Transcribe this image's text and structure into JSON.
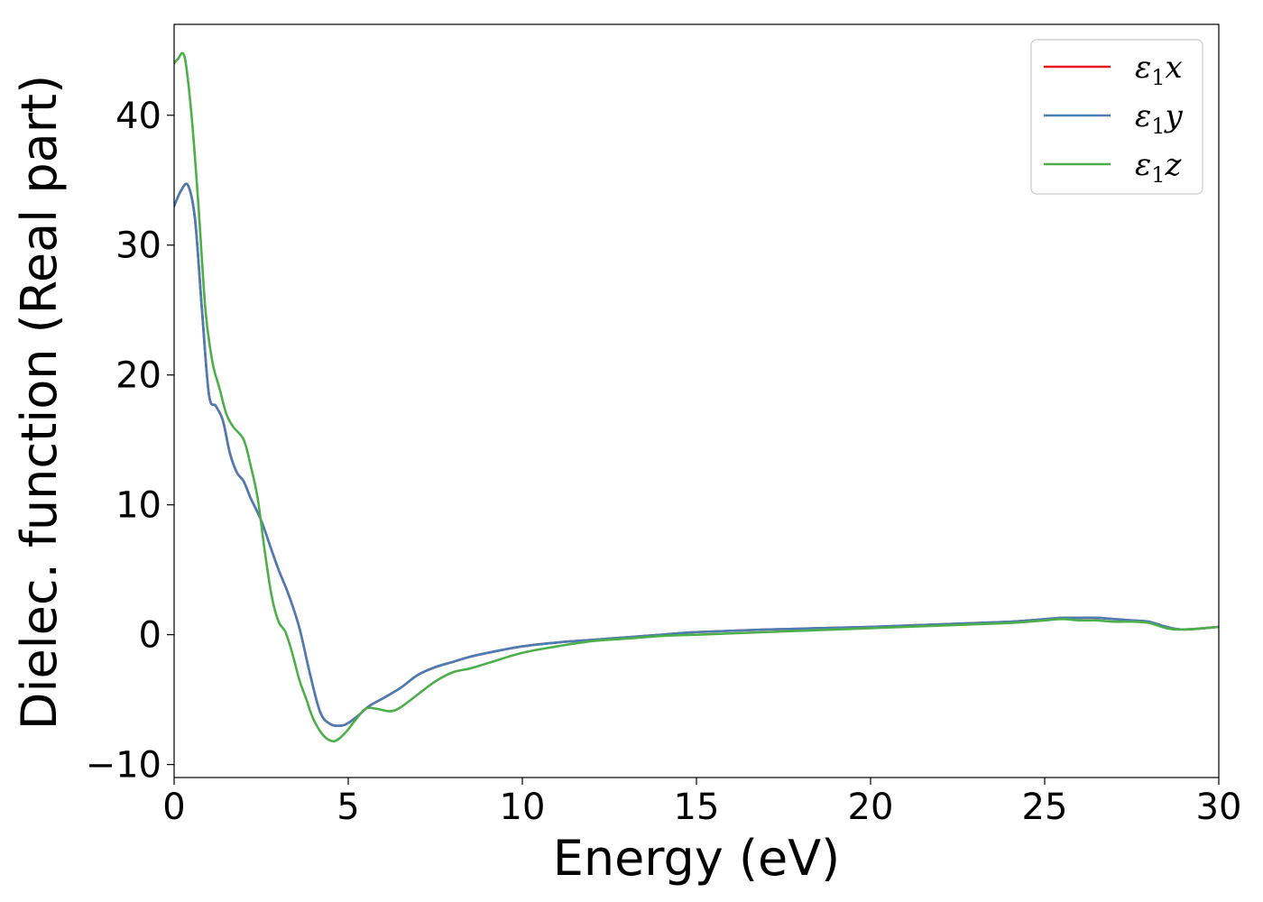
{
  "chart_data": {
    "type": "line",
    "title": "",
    "xlabel": "Energy (eV)",
    "ylabel": "Dielec. function (Real part)",
    "xlim": [
      0,
      30
    ],
    "ylim": [
      -11,
      47
    ],
    "xticks": [
      0,
      5,
      10,
      15,
      20,
      25,
      30
    ],
    "xtick_labels": [
      "0",
      "5",
      "10",
      "15",
      "20",
      "25",
      "30"
    ],
    "yticks": [
      -10,
      0,
      10,
      20,
      30,
      40
    ],
    "ytick_labels": [
      "−10",
      "0",
      "10",
      "20",
      "30",
      "40"
    ],
    "grid": false,
    "legend": "top-right",
    "series": [
      {
        "name": "ε₁x",
        "legend_main": "ε",
        "legend_sub": "1",
        "legend_var": "x",
        "color": "#e41a1c",
        "x": [
          0,
          0.2,
          0.4,
          0.6,
          0.8,
          1.0,
          1.2,
          1.4,
          1.6,
          1.8,
          2.0,
          2.2,
          2.5,
          2.8,
          3.0,
          3.3,
          3.6,
          3.9,
          4.2,
          4.5,
          4.8,
          5.0,
          5.3,
          5.6,
          6.0,
          6.5,
          7.0,
          7.5,
          8.0,
          8.5,
          9.0,
          10.0,
          11.0,
          12.0,
          13.0,
          14.0,
          15.0,
          17.0,
          20.0,
          22.0,
          24.0,
          25.0,
          25.5,
          26.0,
          26.5,
          27.0,
          27.5,
          28.0,
          28.5,
          29.0,
          30.0
        ],
        "y": [
          33.0,
          34.2,
          34.6,
          32.0,
          25.0,
          18.5,
          17.6,
          16.5,
          14.0,
          12.5,
          11.8,
          10.5,
          8.8,
          6.5,
          5.0,
          3.0,
          0.5,
          -3.0,
          -6.0,
          -6.9,
          -7.0,
          -6.8,
          -6.2,
          -5.5,
          -4.9,
          -4.1,
          -3.1,
          -2.5,
          -2.1,
          -1.7,
          -1.4,
          -0.9,
          -0.6,
          -0.4,
          -0.2,
          0.0,
          0.2,
          0.4,
          0.6,
          0.8,
          1.0,
          1.2,
          1.3,
          1.3,
          1.3,
          1.2,
          1.1,
          1.0,
          0.6,
          0.4,
          0.6
        ]
      },
      {
        "name": "ε₁y",
        "legend_main": "ε",
        "legend_sub": "1",
        "legend_var": "y",
        "color": "#4a7db4",
        "x": [
          0,
          0.2,
          0.4,
          0.6,
          0.8,
          1.0,
          1.2,
          1.4,
          1.6,
          1.8,
          2.0,
          2.2,
          2.5,
          2.8,
          3.0,
          3.3,
          3.6,
          3.9,
          4.2,
          4.5,
          4.8,
          5.0,
          5.3,
          5.6,
          6.0,
          6.5,
          7.0,
          7.5,
          8.0,
          8.5,
          9.0,
          10.0,
          11.0,
          12.0,
          13.0,
          14.0,
          15.0,
          17.0,
          20.0,
          22.0,
          24.0,
          25.0,
          25.5,
          26.0,
          26.5,
          27.0,
          27.5,
          28.0,
          28.5,
          29.0,
          30.0
        ],
        "y": [
          33.0,
          34.2,
          34.6,
          32.0,
          25.0,
          18.5,
          17.6,
          16.5,
          14.0,
          12.5,
          11.8,
          10.5,
          8.8,
          6.5,
          5.0,
          3.0,
          0.5,
          -3.0,
          -6.0,
          -6.9,
          -7.0,
          -6.8,
          -6.2,
          -5.5,
          -4.9,
          -4.1,
          -3.1,
          -2.5,
          -2.1,
          -1.7,
          -1.4,
          -0.9,
          -0.6,
          -0.4,
          -0.2,
          0.0,
          0.2,
          0.4,
          0.6,
          0.8,
          1.0,
          1.2,
          1.3,
          1.3,
          1.3,
          1.2,
          1.1,
          1.0,
          0.6,
          0.4,
          0.6
        ]
      },
      {
        "name": "ε₁z",
        "legend_main": "ε",
        "legend_sub": "1",
        "legend_var": "z",
        "color": "#4daf4a",
        "x": [
          0,
          0.1,
          0.3,
          0.5,
          0.7,
          0.9,
          1.1,
          1.3,
          1.5,
          1.7,
          2.0,
          2.2,
          2.4,
          2.6,
          2.8,
          3.0,
          3.2,
          3.4,
          3.6,
          3.8,
          4.0,
          4.3,
          4.6,
          4.9,
          5.2,
          5.5,
          5.8,
          6.2,
          6.5,
          7.0,
          7.5,
          8.0,
          8.5,
          9.0,
          10.0,
          11.0,
          12.0,
          13.0,
          14.0,
          15.0,
          17.0,
          20.0,
          22.0,
          24.0,
          25.0,
          25.5,
          26.0,
          26.5,
          27.0,
          27.5,
          28.0,
          28.5,
          29.0,
          30.0
        ],
        "y": [
          44.0,
          44.3,
          44.5,
          40.0,
          33.0,
          25.0,
          21.0,
          19.0,
          17.0,
          16.0,
          15.0,
          13.0,
          10.5,
          6.5,
          3.0,
          1.0,
          0.2,
          -1.5,
          -3.5,
          -5.0,
          -6.5,
          -7.8,
          -8.2,
          -7.6,
          -6.6,
          -5.7,
          -5.7,
          -5.9,
          -5.6,
          -4.6,
          -3.6,
          -2.9,
          -2.6,
          -2.2,
          -1.4,
          -0.9,
          -0.5,
          -0.3,
          -0.1,
          0.0,
          0.2,
          0.5,
          0.7,
          0.9,
          1.1,
          1.2,
          1.1,
          1.1,
          1.0,
          1.0,
          0.9,
          0.5,
          0.4,
          0.6
        ]
      }
    ]
  }
}
